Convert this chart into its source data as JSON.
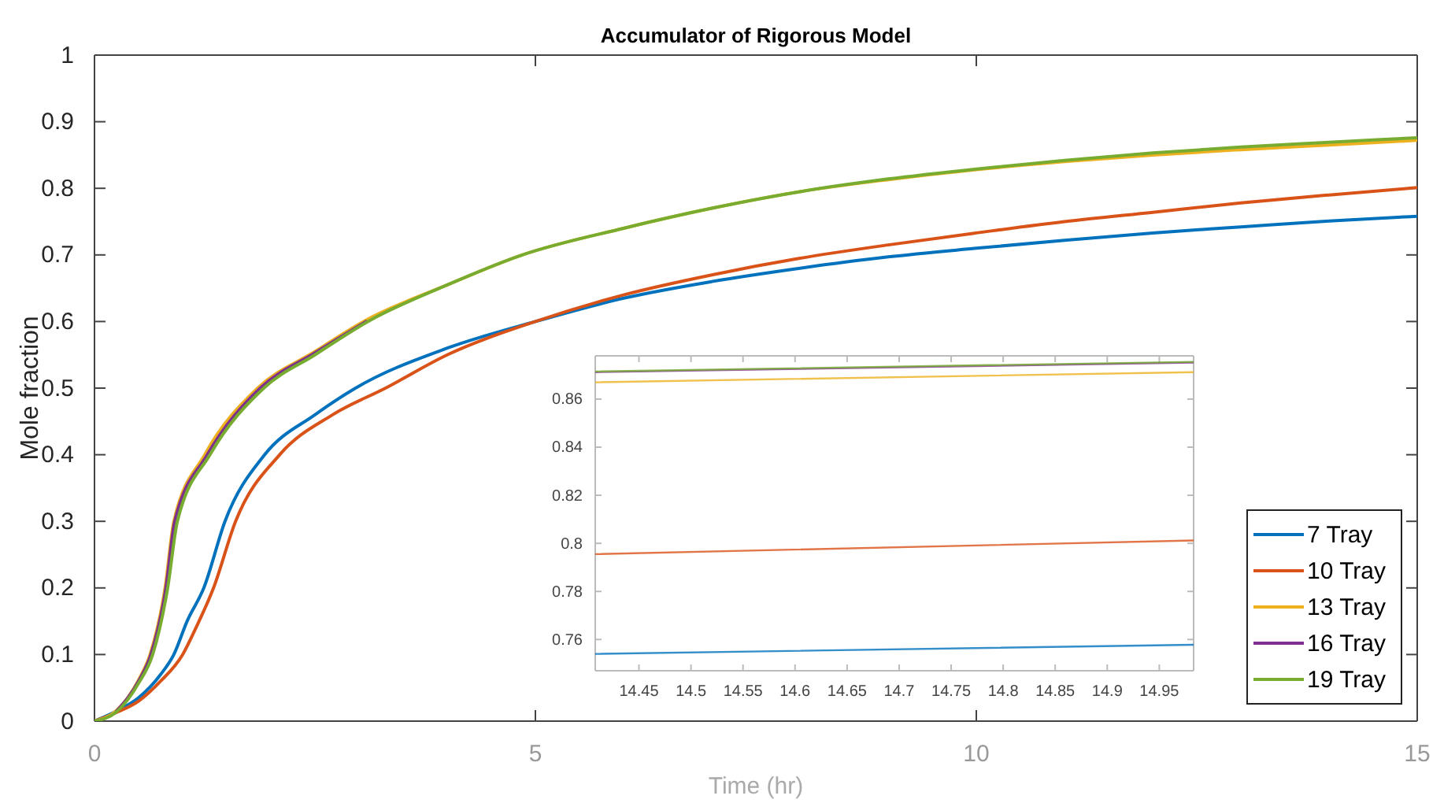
{
  "chart_data": [
    {
      "type": "line",
      "title": "Accumulator of Rigorous Model",
      "xlabel": "Time (hr)",
      "ylabel": "Mole fraction",
      "xlim": [
        0,
        15
      ],
      "xticks": [
        0,
        5,
        10,
        15
      ],
      "ylim": [
        0,
        1
      ],
      "yticks": [
        0,
        0.1,
        0.2,
        0.3,
        0.4,
        0.5,
        0.6,
        0.7,
        0.8,
        0.9,
        1
      ],
      "grid": false,
      "legend": "bottom right",
      "line_style": "solid",
      "marker": "none",
      "series": [
        {
          "name": "7 Tray",
          "color": "#0072bd",
          "x": [
            0,
            0.25,
            0.5,
            0.75,
            0.9,
            1.05,
            1.24,
            1.48,
            1.93,
            2.5,
            2.96,
            4,
            5,
            6,
            7,
            8,
            9,
            10,
            11,
            12,
            13,
            14,
            15
          ],
          "values": [
            0,
            0.015,
            0.035,
            0.07,
            0.1,
            0.15,
            0.2,
            0.3,
            0.4,
            0.46,
            0.5,
            0.56,
            0.6,
            0.635,
            0.66,
            0.68,
            0.697,
            0.71,
            0.722,
            0.733,
            0.742,
            0.751,
            0.758
          ]
        },
        {
          "name": "10 Tray",
          "color": "#d95319",
          "x": [
            0,
            0.25,
            0.5,
            0.75,
            1.0,
            1.15,
            1.35,
            1.6,
            2.1,
            2.7,
            3.3,
            4,
            5,
            6,
            7,
            8,
            9,
            10,
            11,
            12,
            13,
            14,
            15
          ],
          "values": [
            0,
            0.013,
            0.03,
            0.06,
            0.1,
            0.14,
            0.2,
            0.3,
            0.4,
            0.46,
            0.5,
            0.55,
            0.6,
            0.64,
            0.67,
            0.695,
            0.715,
            0.733,
            0.75,
            0.764,
            0.778,
            0.79,
            0.801
          ]
        },
        {
          "name": "13 Tray",
          "color": "#edb120",
          "x": [
            0,
            0.25,
            0.5,
            0.63,
            0.8,
            0.9,
            1.25,
            1.85,
            2.5,
            3.05,
            4,
            4.85,
            6,
            7,
            8,
            9,
            10,
            11,
            12,
            13,
            14,
            15
          ],
          "values": [
            0,
            0.016,
            0.062,
            0.1,
            0.2,
            0.3,
            0.4,
            0.5,
            0.555,
            0.6,
            0.655,
            0.7,
            0.74,
            0.77,
            0.795,
            0.813,
            0.828,
            0.84,
            0.85,
            0.858,
            0.865,
            0.872
          ]
        },
        {
          "name": "16 Tray",
          "color": "#7e2f8e",
          "x": [
            0.25,
            0.5,
            0.64,
            0.81,
            0.91,
            1.28,
            1.88,
            2.5,
            3.08
          ],
          "values": [
            0.015,
            0.06,
            0.1,
            0.2,
            0.3,
            0.4,
            0.5,
            0.553,
            0.6
          ]
        },
        {
          "name": "19 Tray",
          "color": "#77ac30",
          "x": [
            0,
            0.25,
            0.5,
            0.66,
            0.83,
            0.94,
            1.31,
            1.92,
            2.5,
            3.1,
            4,
            4.85,
            6,
            7,
            8,
            9,
            10,
            11,
            12,
            13,
            14,
            15
          ],
          "values": [
            0,
            0.014,
            0.057,
            0.1,
            0.2,
            0.3,
            0.4,
            0.5,
            0.55,
            0.6,
            0.655,
            0.7,
            0.74,
            0.77,
            0.795,
            0.814,
            0.829,
            0.842,
            0.853,
            0.862,
            0.869,
            0.876
          ]
        }
      ]
    },
    {
      "type": "line",
      "xlim": [
        14.408,
        14.983
      ],
      "xticks": [
        {
          "value": 14.45,
          "label": "14.45"
        },
        {
          "value": 14.5,
          "label": "14.5"
        },
        {
          "value": 14.55,
          "label": "14.55"
        },
        {
          "value": 14.6,
          "label": "14.6"
        },
        {
          "value": 14.65,
          "label": "14.65"
        },
        {
          "value": 14.7,
          "label": "14.7"
        },
        {
          "value": 14.75,
          "label": "14.75"
        },
        {
          "value": 14.8,
          "label": "14.8"
        },
        {
          "value": 14.85,
          "label": "14.85"
        },
        {
          "value": 14.9,
          "label": "14.9"
        },
        {
          "value": 14.95,
          "label": "14.95"
        }
      ],
      "ylim": [
        0.747,
        0.878
      ],
      "yticks": [
        0.76,
        0.78,
        0.8,
        0.82,
        0.84,
        0.86
      ],
      "grid": false,
      "line_style": "solid",
      "marker": "none",
      "series": [
        {
          "color": "#0072bd",
          "x": [
            14.408,
            14.983
          ],
          "values": [
            0.754,
            0.7578
          ]
        },
        {
          "color": "#d95319",
          "x": [
            14.408,
            14.983
          ],
          "values": [
            0.7955,
            0.8012
          ]
        },
        {
          "color": "#edb120",
          "x": [
            14.408,
            14.983
          ],
          "values": [
            0.867,
            0.8712
          ]
        },
        {
          "color": "#7e2f8e",
          "x": [
            14.408,
            14.983
          ],
          "values": [
            0.8712,
            0.8752
          ]
        },
        {
          "color": "#77ac30",
          "x": [
            14.408,
            14.983
          ],
          "values": [
            0.8715,
            0.8755
          ]
        }
      ]
    }
  ]
}
